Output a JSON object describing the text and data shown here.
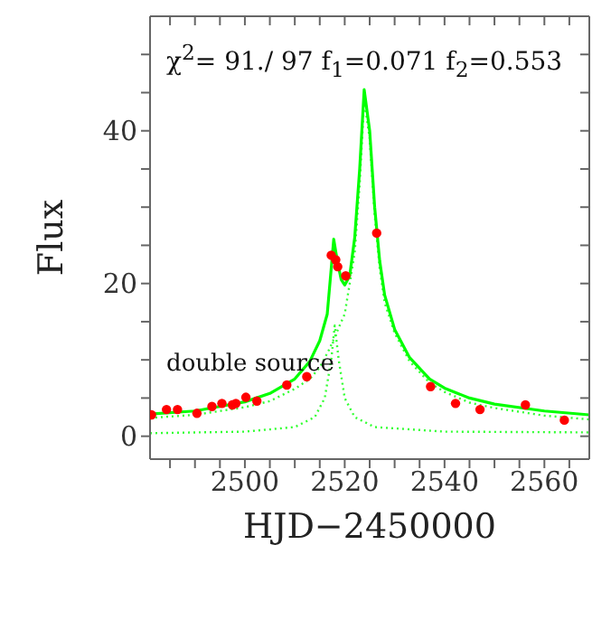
{
  "chart_data": {
    "type": "line",
    "xlabel": "HJD−2450000",
    "ylabel": "Flux",
    "xlim": [
      2481,
      2569
    ],
    "ylim": [
      -3,
      55
    ],
    "xticks": [
      {
        "value": 2485,
        "label": null
      },
      {
        "value": 2490,
        "label": null
      },
      {
        "value": 2495,
        "label": null
      },
      2500,
      {
        "value": 2505,
        "label": null
      },
      {
        "value": 2510,
        "label": null
      },
      {
        "value": 2515,
        "label": null
      },
      2520,
      {
        "value": 2525,
        "label": null
      },
      {
        "value": 2530,
        "label": null
      },
      {
        "value": 2535,
        "label": null
      },
      2540,
      {
        "value": 2545,
        "label": null
      },
      {
        "value": 2550,
        "label": null
      },
      {
        "value": 2555,
        "label": null
      },
      2560,
      {
        "value": 2565,
        "label": null
      }
    ],
    "yticks": [
      0,
      {
        "value": 5,
        "label": null
      },
      {
        "value": 10,
        "label": null
      },
      {
        "value": 15,
        "label": null
      },
      20,
      {
        "value": 25,
        "label": null
      },
      {
        "value": 30,
        "label": null
      },
      {
        "value": 35,
        "label": null
      },
      40,
      {
        "value": 45,
        "label": null
      },
      {
        "value": 50,
        "label": null
      }
    ],
    "annotations": [
      "χ$^{2}$= 91./ 97 f$_{1}$=0.071 f$_{2}$=0.553",
      "double source"
    ],
    "series": [
      {
        "color": "#33ff33",
        "line_style": "dotted",
        "marker": "none",
        "x": [
          2481,
          2490,
          2500,
          2505,
          2510,
          2513,
          2515,
          2517,
          2518,
          2520,
          2522,
          2523,
          2523.9,
          2525,
          2526,
          2527,
          2528,
          2530,
          2533,
          2537,
          2540,
          2545,
          2550,
          2560,
          2569
        ],
        "values": [
          2.4,
          2.8,
          3.8,
          4.6,
          6.2,
          7.5,
          9,
          11.5,
          13,
          16,
          24,
          33,
          44,
          39,
          29,
          22,
          17.5,
          13.5,
          9.8,
          7,
          5.8,
          4.4,
          3.7,
          2.7,
          2.2
        ]
      },
      {
        "color": "#33ff33",
        "line_style": "dotted",
        "marker": "none",
        "x": [
          2481,
          2500,
          2510,
          2514,
          2516,
          2517.3,
          2518,
          2518.8,
          2520,
          2522,
          2526,
          2540,
          2569
        ],
        "values": [
          0.4,
          0.6,
          1.2,
          2.5,
          5,
          10,
          14.5,
          10,
          5,
          2.5,
          1.2,
          0.6,
          0.5
        ]
      },
      {
        "color": "#00ff00",
        "line_style": "solid",
        "marker": "none",
        "x": [
          2481,
          2490,
          2500,
          2505,
          2510,
          2513,
          2515,
          2516.5,
          2517.3,
          2517.8,
          2518.5,
          2519.3,
          2520,
          2521,
          2522,
          2523,
          2523.9,
          2525,
          2526,
          2527,
          2528,
          2530,
          2533,
          2537,
          2540,
          2545,
          2550,
          2560,
          2569
        ],
        "values": [
          2.9,
          3.3,
          4.5,
          5.6,
          7.5,
          9.8,
          12.5,
          16,
          22,
          25.8,
          23,
          20.5,
          19.8,
          21,
          26,
          35,
          45.4,
          40,
          30,
          23,
          18.5,
          14,
          10.3,
          7.5,
          6.3,
          5,
          4.2,
          3.3,
          2.8
        ]
      },
      {
        "type": "scatter",
        "color": "#ff0000",
        "marker": "circle",
        "x": [
          2481.3,
          2484.3,
          2486.5,
          2490.4,
          2493.4,
          2495.4,
          2497.5,
          2498.2,
          2500.2,
          2502.4,
          2508.4,
          2512.4,
          2517.3,
          2518.2,
          2518.6,
          2520.2,
          2526.4,
          2537.2,
          2542.2,
          2547.1,
          2556.2,
          2564.0
        ],
        "values": [
          2.8,
          3.5,
          3.5,
          3.0,
          3.9,
          4.3,
          4.1,
          4.3,
          5.1,
          4.6,
          6.7,
          7.8,
          23.7,
          23.1,
          22.2,
          21.0,
          26.6,
          6.5,
          4.3,
          3.5,
          4.1,
          2.1
        ]
      }
    ]
  }
}
